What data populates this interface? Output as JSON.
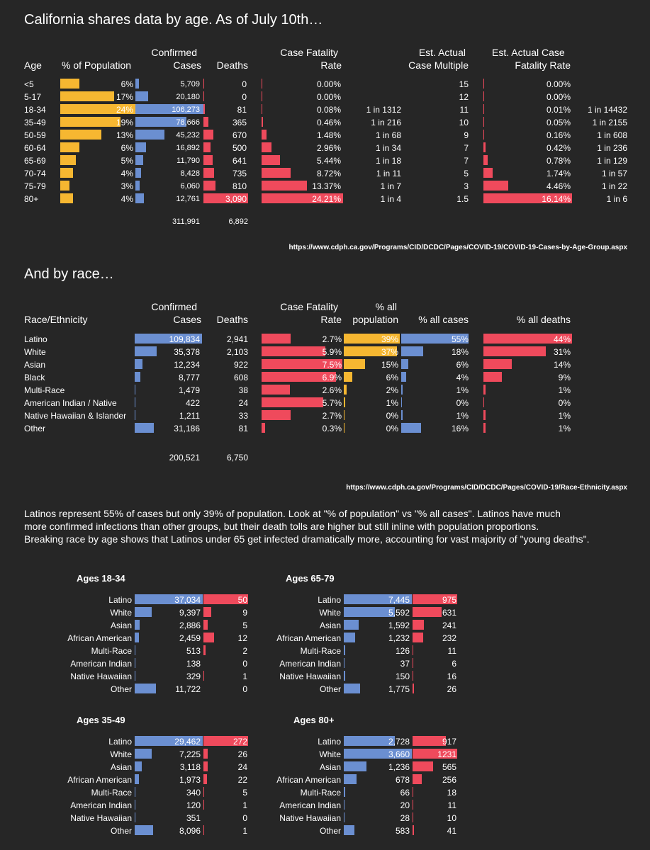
{
  "colors": {
    "background": "#262626",
    "orange": "#f6b731",
    "blue": "#6b8fd1",
    "red": "#ef4a5c",
    "text": "#ffffff"
  },
  "section1": {
    "title": "California shares data by age.  As of July 10th…",
    "headers": {
      "age": "Age",
      "pct_pop": "% of Population",
      "cases_line1": "Confirmed",
      "cases_line2": "Cases",
      "deaths": "Deaths",
      "cfr_line1": "Case Fatality",
      "cfr_line2": "Rate",
      "mult_line1": "Est. Actual",
      "mult_line2": "Case Multiple",
      "ecfr_line1": "Est. Actual Case",
      "ecfr_line2": "Fatality Rate"
    },
    "totals": {
      "cases": "311,991",
      "deaths": "6,892"
    },
    "source": "https://www.cdph.ca.gov/Programs/CID/DCDC/Pages/COVID-19/COVID-19-Cases-by-Age-Group.aspx"
  },
  "section2": {
    "title": "And by race…",
    "headers": {
      "race": "Race/Ethnicity",
      "cases_line1": "Confirmed",
      "cases_line2": "Cases",
      "deaths": "Deaths",
      "cfr_line1": "Case Fatality",
      "cfr_line2": "Rate",
      "pop_line1": "% all",
      "pop_line2": "population",
      "pct_cases": "% all cases",
      "pct_deaths": "% all deaths"
    },
    "totals": {
      "cases": "200,521",
      "deaths": "6,750"
    },
    "source": "https://www.cdph.ca.gov/Programs/CID/DCDC/Pages/COVID-19/Race-Ethnicity.aspx"
  },
  "commentary": [
    "Latinos represent 55% of cases but only 39% of population.  Look at \"% of population\" vs \"% all cases\".  Latinos have much",
    "more confirmed infections than other groups, but their death tolls are higher but still inline with population proportions.",
    "Breaking race by age shows that Latinos under 65 get infected dramatically more, accounting for vast majority of \"young deaths\"."
  ],
  "chart_data": [
    {
      "type": "table",
      "columns": [
        "Age",
        "% of Population",
        "Confirmed Cases",
        "Deaths",
        "Case Fatality Rate",
        "",
        "Est. Actual Case Multiple",
        "Est. Actual Case Fatality Rate",
        ""
      ],
      "rows": [
        {
          "age": "<5",
          "pop": 6,
          "pop_label": "6%",
          "cases": 5709,
          "cases_label": "5,709",
          "deaths": 0,
          "deaths_label": "0",
          "cfr": 0.0,
          "cfr_label": "0.00%",
          "cfr_one_in": "",
          "mult": "15",
          "ecfr": 0.0,
          "ecfr_label": "0.00%",
          "ecfr_one_in": ""
        },
        {
          "age": "5-17",
          "pop": 17,
          "pop_label": "17%",
          "cases": 20180,
          "cases_label": "20,180",
          "deaths": 0,
          "deaths_label": "0",
          "cfr": 0.0,
          "cfr_label": "0.00%",
          "cfr_one_in": "",
          "mult": "12",
          "ecfr": 0.0,
          "ecfr_label": "0.00%",
          "ecfr_one_in": ""
        },
        {
          "age": "18-34",
          "pop": 24,
          "pop_label": "24%",
          "cases": 106273,
          "cases_label": "106,273",
          "deaths": 81,
          "deaths_label": "81",
          "cfr": 0.08,
          "cfr_label": "0.08%",
          "cfr_one_in": "1 in 1312",
          "mult": "11",
          "ecfr": 0.01,
          "ecfr_label": "0.01%",
          "ecfr_one_in": "1 in 14432"
        },
        {
          "age": "35-49",
          "pop": 19,
          "pop_label": "19%",
          "cases": 78666,
          "cases_label": "78,666",
          "deaths": 365,
          "deaths_label": "365",
          "cfr": 0.46,
          "cfr_label": "0.46%",
          "cfr_one_in": "1 in 216",
          "mult": "10",
          "ecfr": 0.05,
          "ecfr_label": "0.05%",
          "ecfr_one_in": "1 in 2155"
        },
        {
          "age": "50-59",
          "pop": 13,
          "pop_label": "13%",
          "cases": 45232,
          "cases_label": "45,232",
          "deaths": 670,
          "deaths_label": "670",
          "cfr": 1.48,
          "cfr_label": "1.48%",
          "cfr_one_in": "1 in 68",
          "mult": "9",
          "ecfr": 0.16,
          "ecfr_label": "0.16%",
          "ecfr_one_in": "1 in 608"
        },
        {
          "age": "60-64",
          "pop": 6,
          "pop_label": "6%",
          "cases": 16892,
          "cases_label": "16,892",
          "deaths": 500,
          "deaths_label": "500",
          "cfr": 2.96,
          "cfr_label": "2.96%",
          "cfr_one_in": "1 in 34",
          "mult": "7",
          "ecfr": 0.42,
          "ecfr_label": "0.42%",
          "ecfr_one_in": "1 in 236"
        },
        {
          "age": "65-69",
          "pop": 5,
          "pop_label": "5%",
          "cases": 11790,
          "cases_label": "11,790",
          "deaths": 641,
          "deaths_label": "641",
          "cfr": 5.44,
          "cfr_label": "5.44%",
          "cfr_one_in": "1 in 18",
          "mult": "7",
          "ecfr": 0.78,
          "ecfr_label": "0.78%",
          "ecfr_one_in": "1 in 129"
        },
        {
          "age": "70-74",
          "pop": 4,
          "pop_label": "4%",
          "cases": 8428,
          "cases_label": "8,428",
          "deaths": 735,
          "deaths_label": "735",
          "cfr": 8.72,
          "cfr_label": "8.72%",
          "cfr_one_in": "1 in 11",
          "mult": "5",
          "ecfr": 1.74,
          "ecfr_label": "1.74%",
          "ecfr_one_in": "1 in 57"
        },
        {
          "age": "75-79",
          "pop": 3,
          "pop_label": "3%",
          "cases": 6060,
          "cases_label": "6,060",
          "deaths": 810,
          "deaths_label": "810",
          "cfr": 13.37,
          "cfr_label": "13.37%",
          "cfr_one_in": "1 in 7",
          "mult": "3",
          "ecfr": 4.46,
          "ecfr_label": "4.46%",
          "ecfr_one_in": "1 in 22"
        },
        {
          "age": "80+",
          "pop": 4,
          "pop_label": "4%",
          "cases": 12761,
          "cases_label": "12,761",
          "deaths": 3090,
          "deaths_label": "3,090",
          "cfr": 24.21,
          "cfr_label": "24.21%",
          "cfr_one_in": "1 in 4",
          "mult": "1.5",
          "ecfr": 16.14,
          "ecfr_label": "16.14%",
          "ecfr_one_in": "1 in 6"
        }
      ]
    },
    {
      "type": "table",
      "columns": [
        "Race/Ethnicity",
        "Confirmed Cases",
        "Deaths",
        "Case Fatality Rate",
        "% all population",
        "% all cases",
        "% all deaths"
      ],
      "rows": [
        {
          "race": "Latino",
          "cases": 109834,
          "cases_label": "109,834",
          "deaths": 2941,
          "deaths_label": "2,941",
          "cfr": 2.7,
          "cfr_label": "2.7%",
          "pop": 39,
          "pop_label": "39%",
          "pct_cases": 55,
          "pct_cases_label": "55%",
          "pct_deaths": 44,
          "pct_deaths_label": "44%"
        },
        {
          "race": "White",
          "cases": 35378,
          "cases_label": "35,378",
          "deaths": 2103,
          "deaths_label": "2,103",
          "cfr": 5.9,
          "cfr_label": "5.9%",
          "pop": 37,
          "pop_label": "37%",
          "pct_cases": 18,
          "pct_cases_label": "18%",
          "pct_deaths": 31,
          "pct_deaths_label": "31%"
        },
        {
          "race": "Asian",
          "cases": 12234,
          "cases_label": "12,234",
          "deaths": 922,
          "deaths_label": "922",
          "cfr": 7.5,
          "cfr_label": "7.5%",
          "pop": 15,
          "pop_label": "15%",
          "pct_cases": 6,
          "pct_cases_label": "6%",
          "pct_deaths": 14,
          "pct_deaths_label": "14%"
        },
        {
          "race": "Black",
          "cases": 8777,
          "cases_label": "8,777",
          "deaths": 608,
          "deaths_label": "608",
          "cfr": 6.9,
          "cfr_label": "6.9%",
          "pop": 6,
          "pop_label": "6%",
          "pct_cases": 4,
          "pct_cases_label": "4%",
          "pct_deaths": 9,
          "pct_deaths_label": "9%"
        },
        {
          "race": "Multi-Race",
          "cases": 1479,
          "cases_label": "1,479",
          "deaths": 38,
          "deaths_label": "38",
          "cfr": 2.6,
          "cfr_label": "2.6%",
          "pop": 2,
          "pop_label": "2%",
          "pct_cases": 1,
          "pct_cases_label": "1%",
          "pct_deaths": 1,
          "pct_deaths_label": "1%"
        },
        {
          "race": "American Indian / Native",
          "cases": 422,
          "cases_label": "422",
          "deaths": 24,
          "deaths_label": "24",
          "cfr": 5.7,
          "cfr_label": "5.7%",
          "pop": 1,
          "pop_label": "1%",
          "pct_cases": 0,
          "pct_cases_label": "0%",
          "pct_deaths": 0,
          "pct_deaths_label": "0%"
        },
        {
          "race": "Native Hawaiian & Islander",
          "cases": 1211,
          "cases_label": "1,211",
          "deaths": 33,
          "deaths_label": "33",
          "cfr": 2.7,
          "cfr_label": "2.7%",
          "pop": 0,
          "pop_label": "0%",
          "pct_cases": 1,
          "pct_cases_label": "1%",
          "pct_deaths": 1,
          "pct_deaths_label": "1%"
        },
        {
          "race": "Other",
          "cases": 31186,
          "cases_label": "31,186",
          "deaths": 81,
          "deaths_label": "81",
          "cfr": 0.3,
          "cfr_label": "0.3%",
          "pop": 0,
          "pop_label": "0%",
          "pct_cases": 16,
          "pct_cases_label": "16%",
          "pct_deaths": 1,
          "pct_deaths_label": "1%"
        }
      ]
    },
    {
      "type": "bar",
      "title": "Ages 18-34",
      "categories": [
        "Latino",
        "White",
        "Asian",
        "African American",
        "Multi-Race",
        "American Indian",
        "Native Hawaiian",
        "Other"
      ],
      "cases": [
        37034,
        9397,
        2886,
        2459,
        513,
        138,
        329,
        11722
      ],
      "cases_labels": [
        "37,034",
        "9,397",
        "2,886",
        "2,459",
        "513",
        "138",
        "329",
        "11,722"
      ],
      "deaths": [
        50,
        9,
        5,
        12,
        2,
        0,
        1,
        0
      ],
      "deaths_labels": [
        "50",
        "9",
        "5",
        "12",
        "2",
        "0",
        "1",
        "0"
      ]
    },
    {
      "type": "bar",
      "title": "Ages 65-79",
      "categories": [
        "Latino",
        "White",
        "Asian",
        "African American",
        "Multi-Race",
        "American Indian",
        "Native Hawaiian",
        "Other"
      ],
      "cases": [
        7445,
        5592,
        1592,
        1232,
        126,
        37,
        150,
        1775
      ],
      "cases_labels": [
        "7,445",
        "5,592",
        "1,592",
        "1,232",
        "126",
        "37",
        "150",
        "1,775"
      ],
      "deaths": [
        975,
        631,
        241,
        232,
        11,
        6,
        16,
        26
      ],
      "deaths_labels": [
        "975",
        "631",
        "241",
        "232",
        "11",
        "6",
        "16",
        "26"
      ]
    },
    {
      "type": "bar",
      "title": "Ages 35-49",
      "categories": [
        "Latino",
        "White",
        "Asian",
        "African American",
        "Multi-Race",
        "American Indian",
        "Native Hawaiian",
        "Other"
      ],
      "cases": [
        29462,
        7225,
        3118,
        1973,
        340,
        120,
        351,
        8096
      ],
      "cases_labels": [
        "29,462",
        "7,225",
        "3,118",
        "1,973",
        "340",
        "120",
        "351",
        "8,096"
      ],
      "deaths": [
        272,
        26,
        24,
        22,
        5,
        1,
        0,
        1
      ],
      "deaths_labels": [
        "272",
        "26",
        "24",
        "22",
        "5",
        "1",
        "0",
        "1"
      ]
    },
    {
      "type": "bar",
      "title": "Ages 80+",
      "categories": [
        "Latino",
        "White",
        "Asian",
        "African American",
        "Multi-Race",
        "American Indian",
        "Native Hawaiian",
        "Other"
      ],
      "cases": [
        2728,
        3660,
        1236,
        678,
        66,
        20,
        28,
        583
      ],
      "cases_labels": [
        "2,728",
        "3,660",
        "1,236",
        "678",
        "66",
        "20",
        "28",
        "583"
      ],
      "deaths": [
        917,
        1231,
        565,
        256,
        18,
        11,
        10,
        41
      ],
      "deaths_labels": [
        "917",
        "1231",
        "565",
        "256",
        "18",
        "11",
        "10",
        "41"
      ]
    }
  ]
}
